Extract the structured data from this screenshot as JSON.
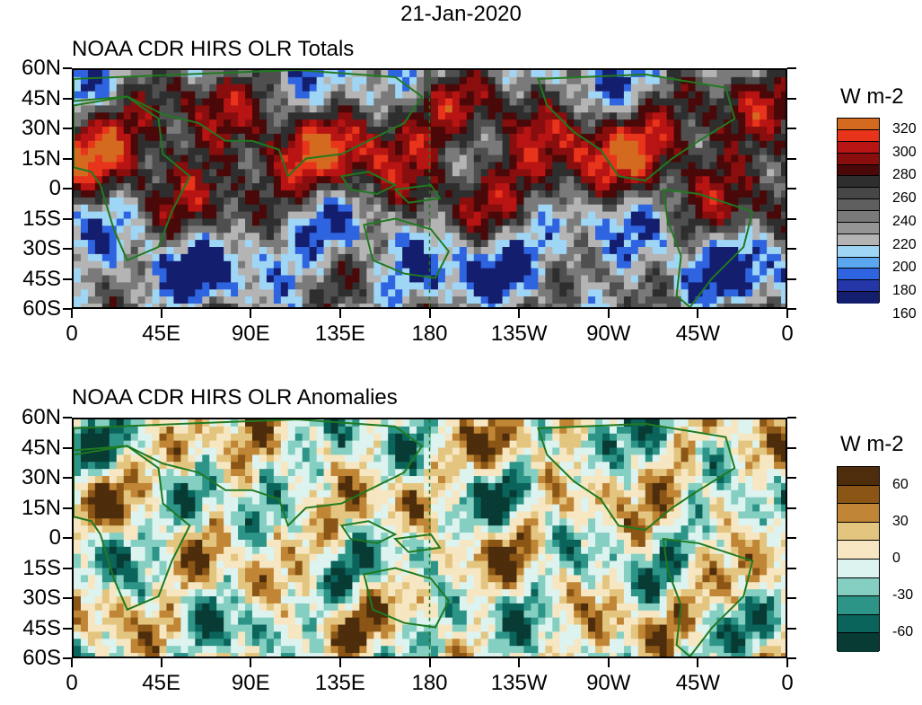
{
  "title": "21-Jan-2020",
  "panels": [
    {
      "title": "NOAA CDR HIRS OLR Totals",
      "legend_title": "W m-2",
      "legend_colors": [
        "#d46a1f",
        "#e8341a",
        "#b81414",
        "#8a0e0e",
        "#4a0808",
        "#2e2e2e",
        "#474747",
        "#5f5f5f",
        "#7a7a7a",
        "#959595",
        "#b4b4b4",
        "#9fd6f5",
        "#5aa7f0",
        "#2e64e0",
        "#2436a8",
        "#141e6e"
      ],
      "legend_labels": [
        "320",
        "300",
        "280",
        "260",
        "240",
        "220",
        "200",
        "180",
        "160"
      ],
      "colorscale": [
        "#141e6e",
        "#2e64e0",
        "#9fd6f5",
        "#b4b4b4",
        "#7a7a7a",
        "#4f4f4f",
        "#2e2e2e",
        "#4a0808",
        "#8a0e0e",
        "#b81414",
        "#e8341a",
        "#d46a1f"
      ]
    },
    {
      "title": "NOAA CDR HIRS OLR Anomalies",
      "legend_title": "W m-2",
      "legend_colors": [
        "#4d2d0b",
        "#8a5515",
        "#c08535",
        "#e3c57f",
        "#f6e6c1",
        "#ddf3f0",
        "#84cfc2",
        "#2d9488",
        "#0b645b",
        "#073b33"
      ],
      "legend_labels": [
        "60",
        "30",
        "0",
        "-30",
        "-60"
      ],
      "colorscale": [
        "#073b33",
        "#0b645b",
        "#2d9488",
        "#84cfc2",
        "#ddf3f0",
        "#f6e6c1",
        "#e3c57f",
        "#c08535",
        "#8a5515",
        "#4d2d0b"
      ]
    }
  ],
  "y_labels": [
    "60N",
    "45N",
    "30N",
    "15N",
    "0",
    "15S",
    "30S",
    "45S",
    "60S"
  ],
  "x_labels": [
    "0",
    "45E",
    "90E",
    "135E",
    "180",
    "135W",
    "90W",
    "45W",
    "0"
  ]
}
